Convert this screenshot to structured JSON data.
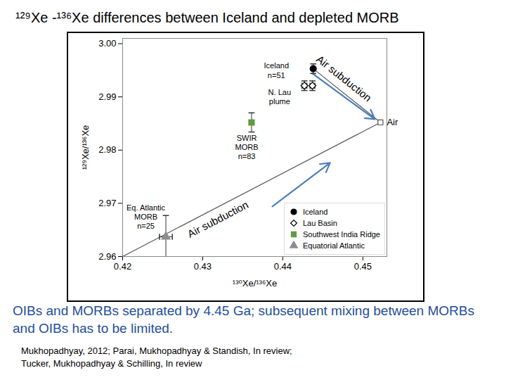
{
  "chart_data": {
    "type": "scatter",
    "title": "¹²⁹Xe -¹³⁶Xe differences between Iceland and depleted MORB",
    "x_label": "¹³⁰Xe/¹³⁶Xe",
    "y_label": "¹²⁹Xe/¹³⁶Xe",
    "xlim": [
      0.42,
      0.453
    ],
    "xticks": [
      0.42,
      0.43,
      0.44,
      0.45
    ],
    "ylim": [
      2.96,
      3.001
    ],
    "yticks": [
      2.96,
      2.97,
      2.98,
      2.99,
      {
        "value": 3,
        "label": "3.00"
      }
    ],
    "grid": false,
    "legend": "bottom-right",
    "series": [
      {
        "name": "Iceland",
        "color": "#000000",
        "marker": "circle",
        "x": [
          0.4438
        ],
        "y": [
          2.9953
        ],
        "y_error": [
          0.0009
        ]
      },
      {
        "name": "Lau Basin",
        "color": "#000000",
        "marker": "open_diamond",
        "x": [
          0.4427,
          0.4437
        ],
        "y": [
          2.9921,
          2.9921
        ],
        "y_error": [
          0.0009,
          0.0009
        ],
        "x_error": [
          0.0003,
          0.0003
        ]
      },
      {
        "name": "Southwest India Ridge",
        "color": "#5e9c3f",
        "marker": "square",
        "x": [
          0.4361
        ],
        "y": [
          2.9852
        ],
        "y_error": [
          0.0018
        ]
      },
      {
        "name": "Equatorial Atlantic",
        "color": "#8c8c8c",
        "marker": "triangle",
        "x": [
          0.4254
        ],
        "y": [
          2.9637
        ],
        "y_error": [
          0.004
        ],
        "x_error": [
          0.0008
        ]
      }
    ],
    "air": {
      "name": "Air",
      "color": "#555555",
      "marker": "open_square",
      "x": [
        0.4522
      ],
      "y": [
        2.9852
      ]
    },
    "mixing_lines": [
      {
        "label": "Air subduction",
        "x": [
          0.42,
          0.4522
        ],
        "y": [
          2.96,
          2.9852
        ]
      },
      {
        "label": "Air subduction",
        "x": [
          0.4438,
          0.4522
        ],
        "y": [
          2.9953,
          2.9852
        ]
      }
    ],
    "arrows": {
      "color": "#4a7ebb",
      "segments": [
        {
          "x1": 0.4387,
          "y1": 2.9694,
          "x2": 0.4459,
          "y2": 2.9776
        },
        {
          "x1": 0.4437,
          "y1": 2.9944,
          "x2": 0.4515,
          "y2": 2.9858
        }
      ]
    },
    "annotations": [
      {
        "text": "Iceland\nn=51",
        "x": 0.4392,
        "y": 2.995
      },
      {
        "text": "N. Lau\nplume",
        "x": 0.4396,
        "y": 2.99
      },
      {
        "text": "SWIR\nMORB\nn=83",
        "x": 0.4355,
        "y": 2.9806
      },
      {
        "text": "Eq. Atlantic\nMORB\nn=25",
        "x": 0.4229,
        "y": 2.9675
      }
    ],
    "caption": "OIBs and MORBs separated by 4.45 Ga; subsequent mixing between MORBs and OIBs has to be limited.",
    "references": [
      "Mukhopadhyay, 2012; Parai, Mukhopadhyay & Standish, In review;",
      "Tucker, Mukhopadhyay & Schilling, In review"
    ]
  }
}
